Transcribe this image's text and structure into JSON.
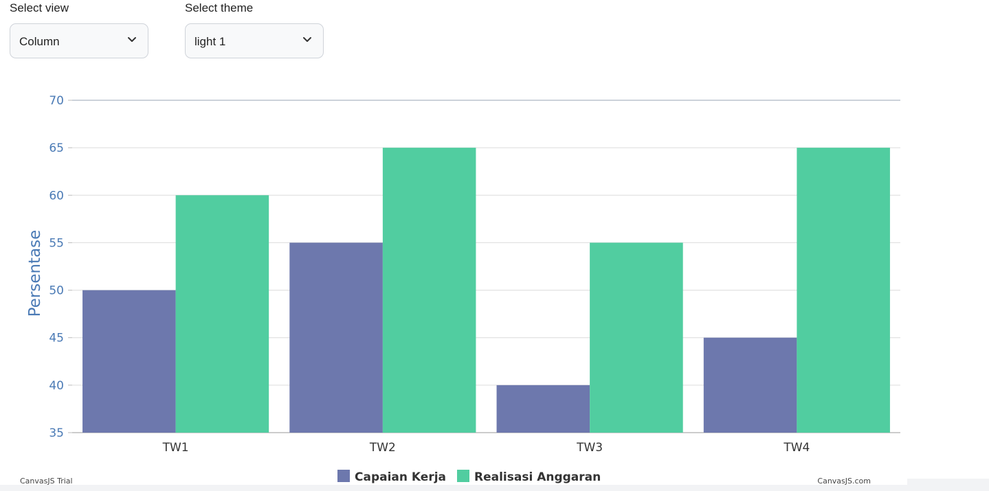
{
  "controls": {
    "view": {
      "label": "Select view",
      "value": "Column"
    },
    "theme": {
      "label": "Select theme",
      "value": "light 1"
    }
  },
  "credits": {
    "left": "CanvasJS Trial",
    "right": "CanvasJS.com"
  },
  "icons": {
    "dropdown": "chevron-down-icon"
  },
  "chart_data": {
    "type": "bar",
    "title": "",
    "xlabel": "",
    "ylabel": "Persentase",
    "categories": [
      "TW1",
      "TW2",
      "TW3",
      "TW4"
    ],
    "ylim": [
      35,
      70
    ],
    "yticks": [
      35,
      40,
      45,
      50,
      55,
      60,
      65,
      70
    ],
    "grid": true,
    "legend": "bottom-center",
    "series": [
      {
        "name": "Capaian Kerja",
        "color": "#6d78ad",
        "values": [
          50,
          55,
          40,
          45
        ]
      },
      {
        "name": "Realisasi Anggaran",
        "color": "#51cda0",
        "values": [
          60,
          65,
          55,
          65
        ]
      }
    ]
  }
}
